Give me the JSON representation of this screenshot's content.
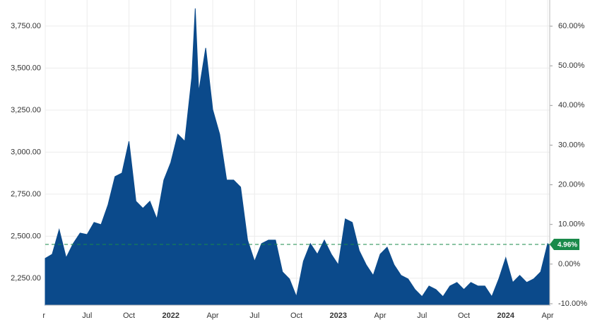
{
  "chart_data": {
    "type": "area",
    "series": [
      {
        "color": "#0b4a8b",
        "x": [
          -9,
          -8.5,
          -8,
          -7.5,
          -7,
          -6.5,
          -6,
          -5.5,
          -5,
          -4.5,
          -4,
          -3.5,
          -3,
          -2.5,
          -2,
          -1.5,
          -1,
          -0.5,
          0,
          0.5,
          1,
          1.5,
          1.75,
          2,
          2.5,
          3,
          3.5,
          4,
          4.5,
          5,
          5.5,
          6,
          6.5,
          7,
          7.5,
          8,
          8.5,
          9,
          9.5,
          10,
          10.5,
          11,
          11.5,
          12,
          12.5,
          13,
          13.5,
          14,
          14.5,
          15,
          15.5,
          16,
          16.5,
          17,
          17.5,
          18,
          18.5,
          19,
          19.5,
          20,
          20.5,
          21,
          21.5,
          22,
          22.5,
          23,
          23.5,
          24,
          24.5,
          25,
          25.5,
          26,
          26.5,
          27,
          27.15
        ],
        "values": [
          2368,
          2393,
          2540,
          2372,
          2456,
          2519,
          2510,
          2582,
          2569,
          2687,
          2855,
          2876,
          3065,
          2708,
          2666,
          2708,
          2603,
          2834,
          2939,
          3107,
          3065,
          3443,
          3855,
          3359,
          3620,
          3254,
          3107,
          2834,
          2834,
          2792,
          2477,
          2351,
          2456,
          2477,
          2477,
          2288,
          2246,
          2141,
          2351,
          2456,
          2393,
          2477,
          2393,
          2330,
          2603,
          2582,
          2414,
          2330,
          2267,
          2393,
          2435,
          2330,
          2267,
          2246,
          2183,
          2141,
          2204,
          2183,
          2141,
          2204,
          2225,
          2183,
          2225,
          2204,
          2204,
          2141,
          2246,
          2372,
          2225,
          2267,
          2225,
          2246,
          2288,
          2456,
          2447
        ]
      }
    ],
    "xlim": [
      -9,
      27.15
    ],
    "xticks": [
      {
        "value": -9,
        "label": "r"
      },
      {
        "value": -6,
        "label": "Jul"
      },
      {
        "value": -3,
        "label": "Oct"
      },
      {
        "value": 0,
        "label": "2022"
      },
      {
        "value": 3,
        "label": "Apr"
      },
      {
        "value": 6,
        "label": "Jul"
      },
      {
        "value": 9,
        "label": "Oct"
      },
      {
        "value": 12,
        "label": "2023"
      },
      {
        "value": 15,
        "label": "Apr"
      },
      {
        "value": 18,
        "label": "Jul"
      },
      {
        "value": 21,
        "label": "Oct"
      },
      {
        "value": 24,
        "label": "2024"
      },
      {
        "value": 27,
        "label": "Apr"
      }
    ],
    "ylim": [
      2090,
      3905
    ],
    "yticks": [
      {
        "value": 2250,
        "label": "2,250.00"
      },
      {
        "value": 2500,
        "label": "2,500.00"
      },
      {
        "value": 2750,
        "label": "2,750.00"
      },
      {
        "value": 3000,
        "label": "3,000.00"
      },
      {
        "value": 3250,
        "label": "3,250.00"
      },
      {
        "value": 3500,
        "label": "3,500.00"
      },
      {
        "value": 3750,
        "label": "3,750.00"
      }
    ],
    "y2lim": [
      -10.36,
      66.6
    ],
    "y2ticks": [
      {
        "value": -10,
        "label": "-10.00%"
      },
      {
        "value": 0,
        "label": "0.00%"
      },
      {
        "value": 10,
        "label": "10.00%"
      },
      {
        "value": 20,
        "label": "20.00%"
      },
      {
        "value": 30,
        "label": "30.00%"
      },
      {
        "value": 40,
        "label": "40.00%"
      },
      {
        "value": 50,
        "label": "50.00%"
      },
      {
        "value": 60,
        "label": "60.00%"
      }
    ],
    "reference_line": {
      "axis": "y2",
      "value": 4.96,
      "label": "4.96%",
      "color": "#1a8a4a"
    },
    "grid": true
  }
}
